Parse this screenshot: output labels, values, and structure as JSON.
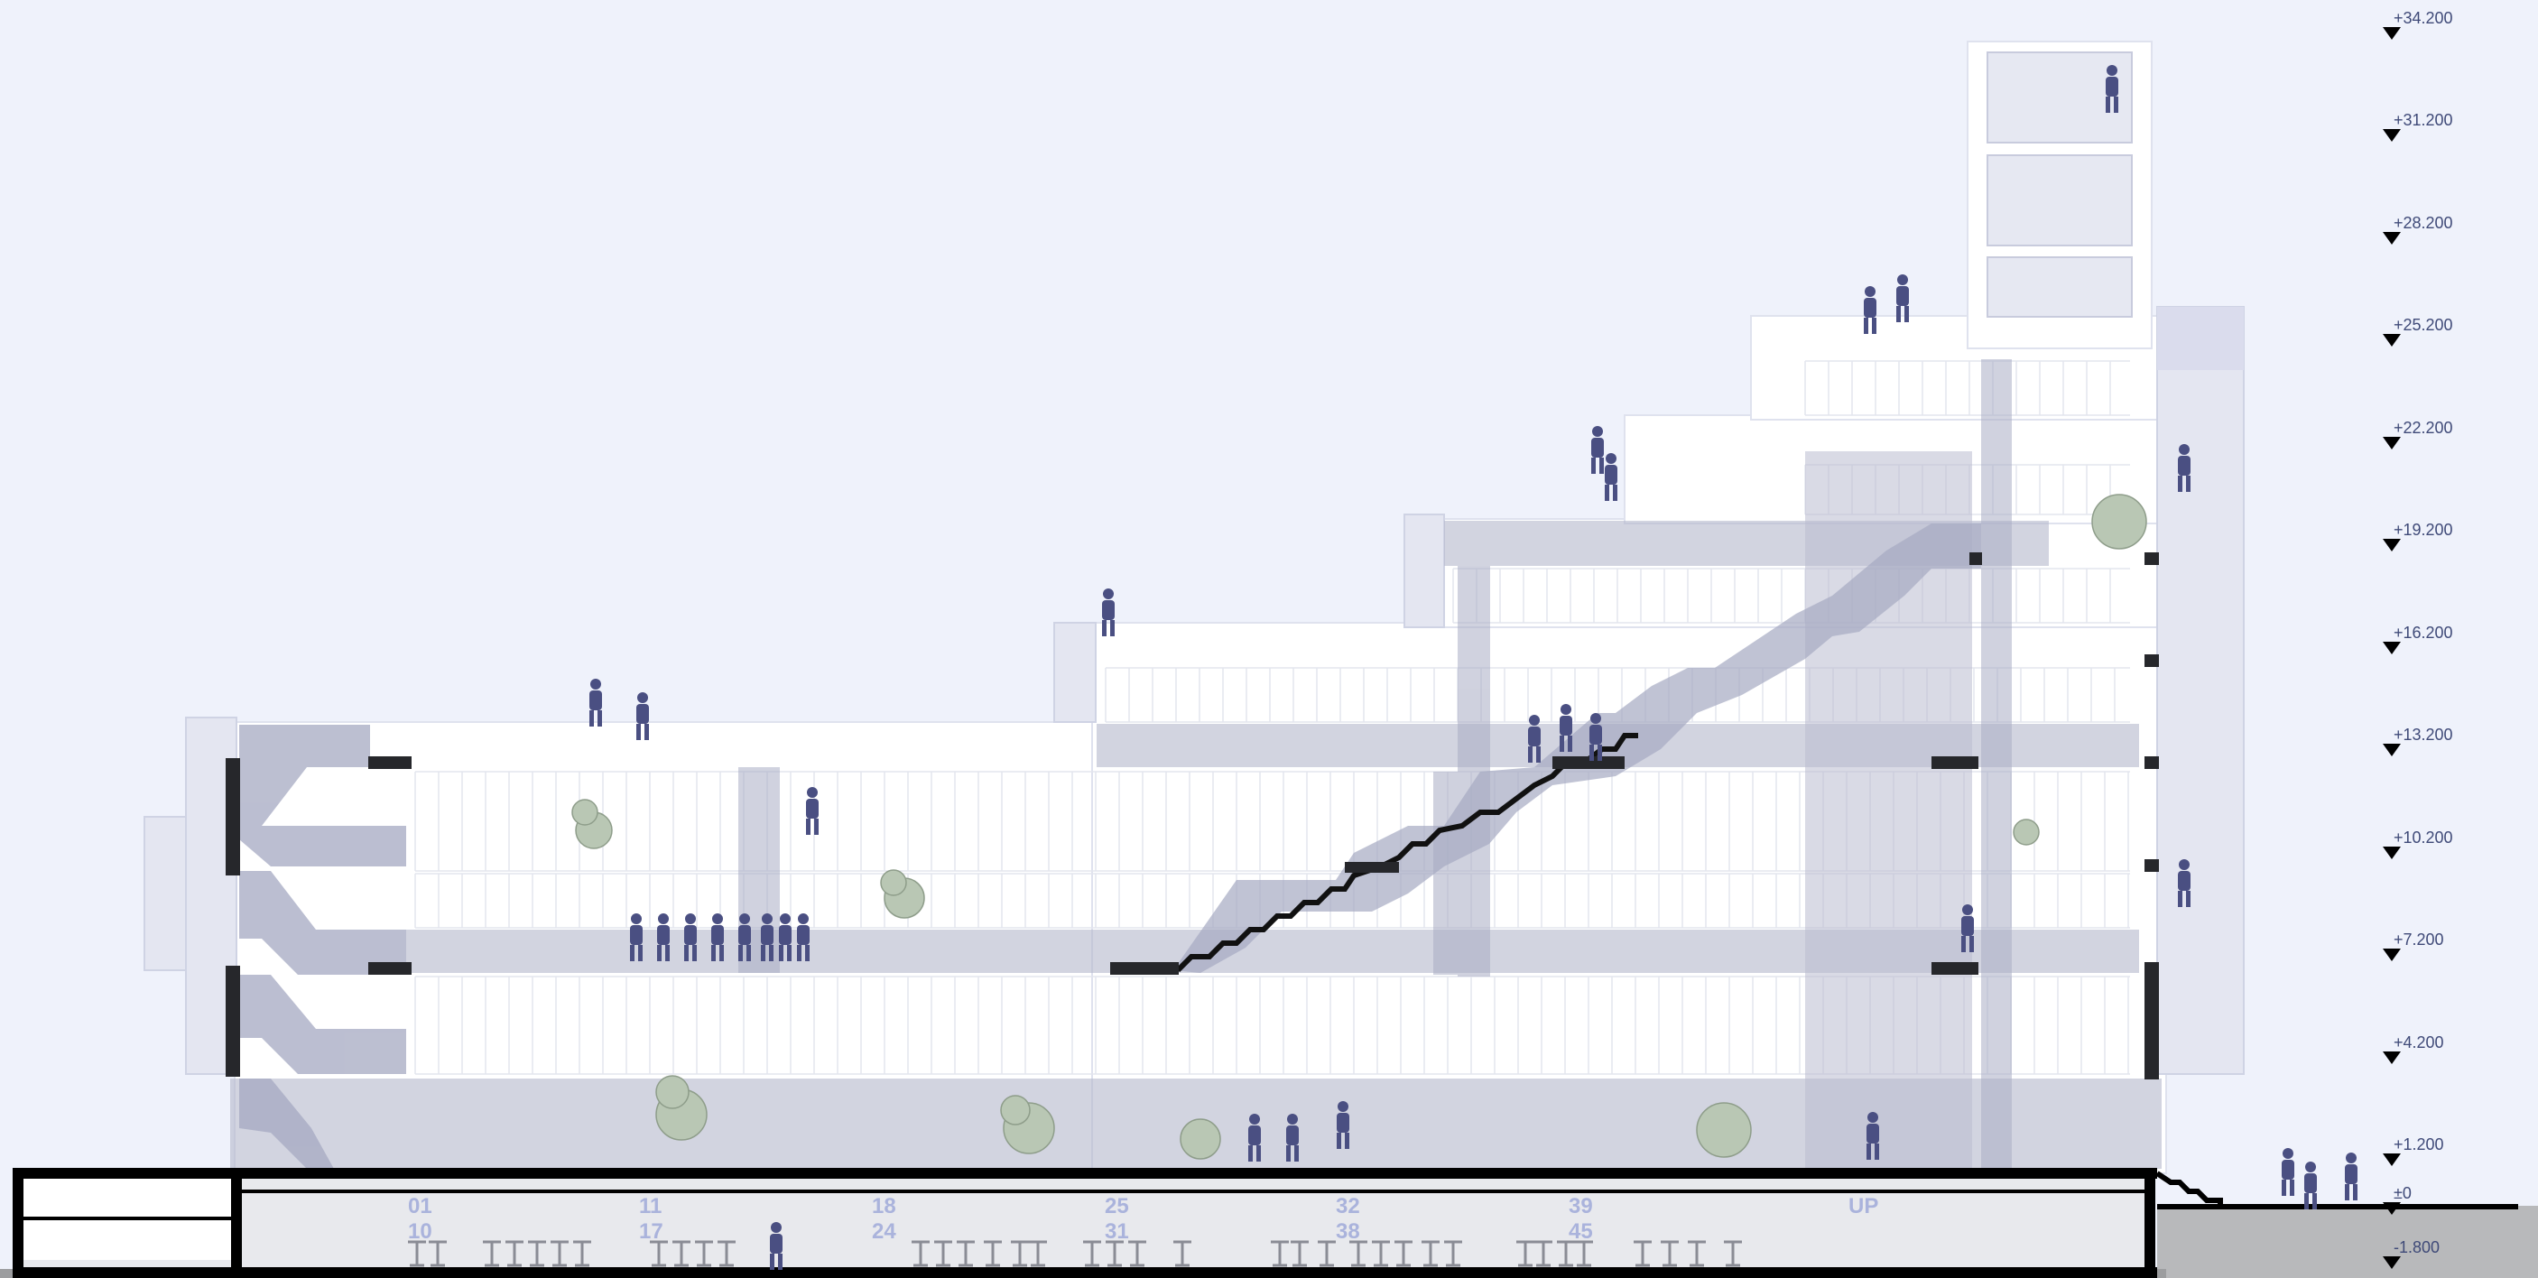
{
  "levels": [
    {
      "label": "+34.200"
    },
    {
      "label": "+31.200"
    },
    {
      "label": "+28.200"
    },
    {
      "label": "+25.200"
    },
    {
      "label": "+22.200"
    },
    {
      "label": "+19.200"
    },
    {
      "label": "+16.200"
    },
    {
      "label": "+13.200"
    },
    {
      "label": "+10.200"
    },
    {
      "label": "+7.200"
    },
    {
      "label": "+4.200"
    },
    {
      "label": "+1.200"
    },
    {
      "label": "±0"
    },
    {
      "label": "-1.800"
    }
  ],
  "bike_stalls": [
    {
      "top": "01",
      "bottom": "10"
    },
    {
      "top": "11",
      "bottom": "17"
    },
    {
      "top": "18",
      "bottom": "24"
    },
    {
      "top": "25",
      "bottom": "31"
    },
    {
      "top": "32",
      "bottom": "38"
    },
    {
      "top": "39",
      "bottom": "45"
    }
  ],
  "ramp_label": "UP",
  "colors": {
    "background": "#eff2fb",
    "building": "#ffffff",
    "translucent_slab": "#c8cad9",
    "figure": "#4a4f82",
    "basement": "#e8e9ed",
    "ground": "#b8b9bb"
  }
}
